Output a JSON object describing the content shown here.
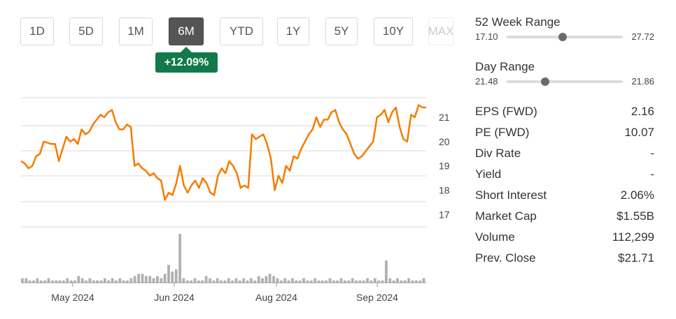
{
  "ranges": {
    "buttons": [
      "1D",
      "5D",
      "1M",
      "6M",
      "YTD",
      "1Y",
      "5Y",
      "10Y",
      "MAX"
    ],
    "active": "6M",
    "change": "+12.09%"
  },
  "colors": {
    "price_line": "#f57c00",
    "volume_bar": "#b0b0b0",
    "grid": "#d8d8d8",
    "badge_bg": "#127a4a",
    "active_button": "#555555"
  },
  "stats": {
    "week52": {
      "label": "52 Week Range",
      "low": "17.10",
      "high": "27.72",
      "position": 0.48
    },
    "day": {
      "label": "Day Range",
      "low": "21.48",
      "high": "21.86",
      "position": 0.33
    },
    "rows": [
      {
        "label": "EPS (FWD)",
        "value": "2.16"
      },
      {
        "label": "PE (FWD)",
        "value": "10.07"
      },
      {
        "label": "Div Rate",
        "value": "-"
      },
      {
        "label": "Yield",
        "value": "-"
      },
      {
        "label": "Short Interest",
        "value": "2.06%"
      },
      {
        "label": "Market Cap",
        "value": "$1.55B"
      },
      {
        "label": "Volume",
        "value": "112,299"
      },
      {
        "label": "Prev. Close",
        "value": "$21.71"
      }
    ]
  },
  "chart_data": {
    "type": "line",
    "x_ticks": [
      "May 2024",
      "Jun 2024",
      "Aug 2024",
      "Sep 2024"
    ],
    "y_ticks": [
      17,
      18,
      19,
      20,
      21
    ],
    "ylim": [
      16.5,
      21.8
    ],
    "series": [
      {
        "values": [
          19.2,
          19.1,
          18.9,
          19.0,
          19.4,
          19.5,
          20.0,
          19.95,
          19.9,
          19.9,
          19.2,
          19.7,
          20.2,
          20.0,
          20.1,
          19.9,
          20.5,
          20.3,
          20.4,
          20.7,
          20.9,
          21.1,
          21.0,
          21.2,
          21.3,
          20.8,
          20.5,
          20.5,
          20.7,
          20.6,
          19.0,
          19.1,
          18.9,
          18.8,
          18.6,
          18.7,
          18.5,
          18.4,
          17.6,
          17.9,
          17.8,
          18.3,
          19.0,
          18.2,
          17.9,
          18.2,
          18.4,
          18.1,
          18.5,
          18.3,
          17.9,
          17.8,
          18.6,
          18.9,
          18.7,
          19.2,
          19.0,
          18.7,
          18.1,
          18.2,
          18.1,
          20.3,
          20.1,
          20.2,
          20.3,
          19.9,
          19.3,
          18.0,
          18.6,
          18.3,
          19.0,
          18.8,
          19.4,
          19.3,
          19.7,
          20.0,
          20.3,
          20.5,
          21.0,
          20.6,
          20.9,
          20.9,
          21.2,
          21.3,
          20.8,
          20.5,
          20.3,
          19.9,
          19.5,
          19.3,
          19.4,
          19.6,
          19.8,
          20.0,
          21.0,
          21.1,
          21.3,
          20.8,
          21.2,
          21.4,
          20.6,
          20.1,
          20.0,
          21.1,
          21.0,
          21.5,
          21.4,
          21.4
        ]
      }
    ],
    "volume": [
      2,
      2,
      1,
      1,
      2,
      1,
      1,
      2,
      1,
      1,
      1,
      1,
      2,
      1,
      1,
      3,
      2,
      1,
      2,
      1,
      1,
      1,
      2,
      1,
      2,
      1,
      2,
      1,
      1,
      2,
      3,
      4,
      4,
      3,
      3,
      2,
      3,
      2,
      4,
      8,
      5,
      6,
      22,
      2,
      1,
      1,
      2,
      1,
      1,
      3,
      2,
      1,
      2,
      1,
      1,
      2,
      1,
      2,
      1,
      2,
      1,
      2,
      1,
      3,
      2,
      3,
      4,
      3,
      2,
      1,
      2,
      1,
      2,
      1,
      1,
      2,
      1,
      1,
      2,
      1,
      1,
      1,
      2,
      1,
      1,
      2,
      1,
      1,
      2,
      1,
      1,
      1,
      2,
      1,
      2,
      1,
      1,
      10,
      2,
      1,
      2,
      1,
      1,
      2,
      1,
      1,
      1,
      2
    ],
    "grid": true
  }
}
